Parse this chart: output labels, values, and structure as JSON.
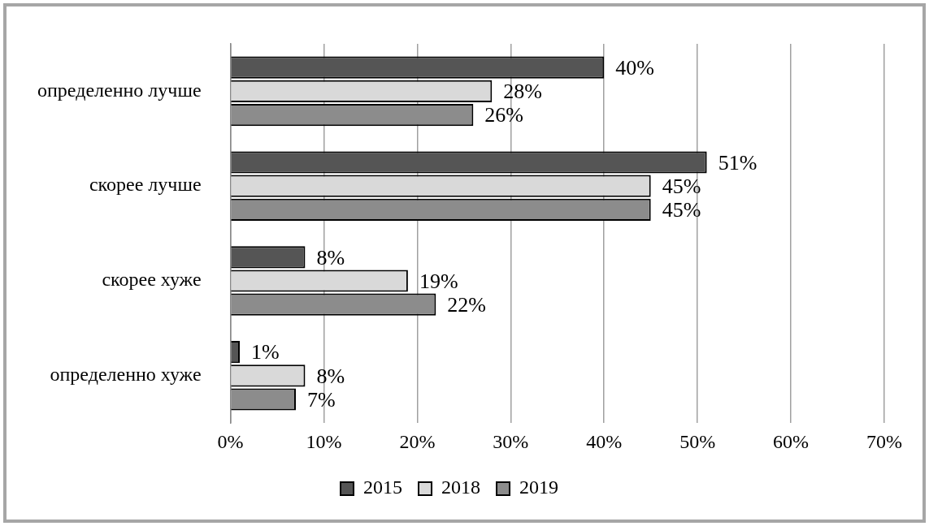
{
  "chart_data": {
    "type": "bar",
    "orientation": "horizontal",
    "categories": [
      "определенно лучше",
      "скорее лучше",
      "скорее хуже",
      "определенно хуже"
    ],
    "series": [
      {
        "name": "2015",
        "color": "#555555",
        "values": [
          40,
          51,
          8,
          1
        ],
        "value_labels": [
          "40%",
          "51%",
          "8%",
          "1%"
        ]
      },
      {
        "name": "2018",
        "color": "#d9d9d9",
        "values": [
          28,
          45,
          19,
          8
        ],
        "value_labels": [
          "28%",
          "45%",
          "19%",
          "8%"
        ]
      },
      {
        "name": "2019",
        "color": "#8c8c8c",
        "values": [
          26,
          45,
          22,
          7
        ],
        "value_labels": [
          "26%",
          "45%",
          "22%",
          "7%"
        ]
      }
    ],
    "xlim": [
      0,
      70
    ],
    "xticks": [
      {
        "value": 0,
        "label": "0%"
      },
      {
        "value": 10,
        "label": "10%"
      },
      {
        "value": 20,
        "label": "20%"
      },
      {
        "value": 30,
        "label": "30%"
      },
      {
        "value": 40,
        "label": "40%"
      },
      {
        "value": 50,
        "label": "50%"
      },
      {
        "value": 60,
        "label": "60%"
      },
      {
        "value": 70,
        "label": "70%"
      }
    ],
    "grid": "x",
    "legend": "bottom"
  }
}
